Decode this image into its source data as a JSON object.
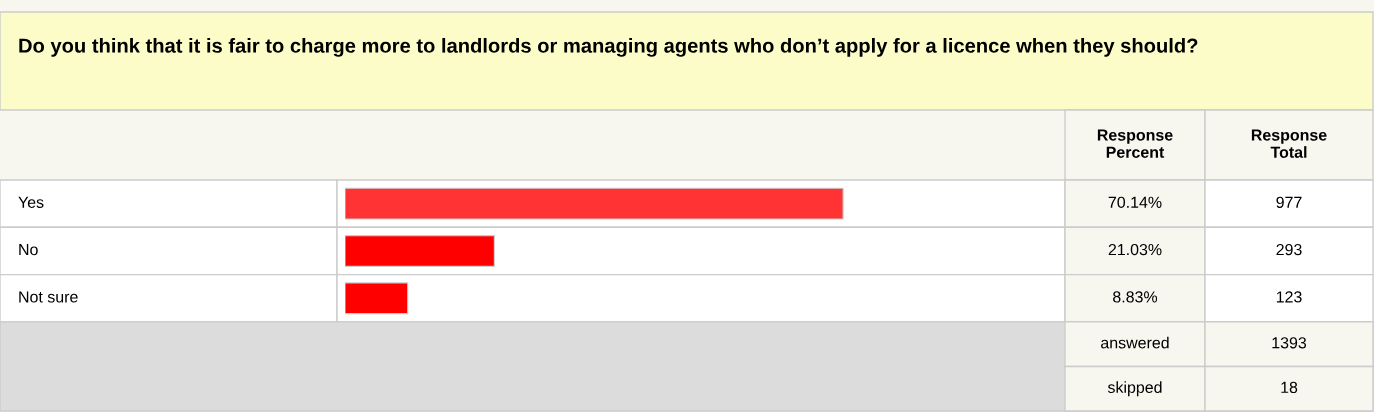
{
  "chart_data": {
    "type": "bar",
    "orientation": "horizontal",
    "title": "Do you think that it is fair to charge more to landlords or managing agents who don’t apply for a licence when they should?",
    "categories": [
      "Yes",
      "No",
      "Not sure"
    ],
    "values": [
      70.14,
      21.03,
      8.83
    ],
    "colors": [
      "#ff3333",
      "#ff0000",
      "#ff0000"
    ],
    "value_labels": [
      "70.14%",
      "21.03%",
      "8.83%"
    ],
    "annotations": [
      "Response Percent",
      "Response Total",
      "answered",
      "1393",
      "skipped",
      "18",
      "977",
      "293",
      "123"
    ]
  }
}
